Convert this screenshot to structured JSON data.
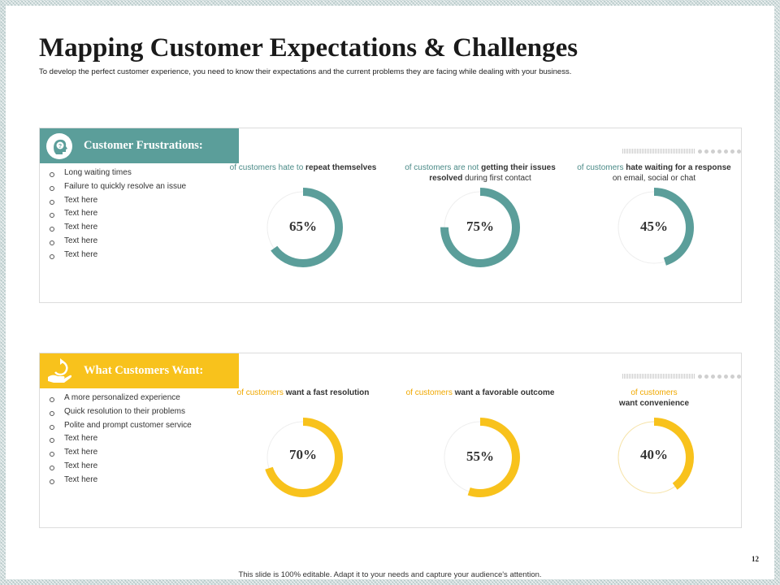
{
  "slide": {
    "title": "Mapping Customer Expectations & Challenges",
    "subtitle": "To develop the perfect customer experience, you need to know their expectations and the current problems they are facing while dealing with your business.",
    "footer": "This slide is 100% editable. Adapt it to your needs and capture your audience's attention.",
    "page_number": "12"
  },
  "colors": {
    "teal": "#5b9e9a",
    "yellow": "#f8c21c",
    "track": "#eeeeee"
  },
  "frustrations": {
    "header": "Customer Frustrations:",
    "icon": "question-head-icon",
    "bullets": [
      "Long waiting times",
      "Failure to quickly resolve an issue",
      "Text here",
      "Text here",
      "Text here",
      "Text here",
      "Text here"
    ],
    "stats": [
      {
        "lead": "of customers hate to",
        "highlight": "repeat themselves",
        "trail": "",
        "value": "65%",
        "fraction": 0.65
      },
      {
        "lead": "of customers are not",
        "highlight": "getting their issues resolved",
        "trail": " during first contact",
        "value": "75%",
        "fraction": 0.75
      },
      {
        "lead": "of customers",
        "highlight": "hate waiting for a response",
        "trail": " on email, social or chat",
        "value": "45%",
        "fraction": 0.45
      }
    ]
  },
  "wants": {
    "header": "What Customers Want:",
    "icon": "hand-refresh-icon",
    "bullets": [
      "A more personalized experience",
      "Quick resolution to their problems",
      "Polite  and prompt customer service",
      "Text here",
      "Text here",
      "Text here",
      "Text here"
    ],
    "stats": [
      {
        "lead": "of customers",
        "highlight": "want a fast resolution",
        "trail": "",
        "value": "70%",
        "fraction": 0.7
      },
      {
        "lead": "of customers",
        "highlight": "want a favorable outcome",
        "trail": "",
        "value": "55%",
        "fraction": 0.55
      },
      {
        "lead": "of customers",
        "highlight": "want convenience",
        "trail": "",
        "value": "40%",
        "fraction": 0.4
      }
    ]
  }
}
